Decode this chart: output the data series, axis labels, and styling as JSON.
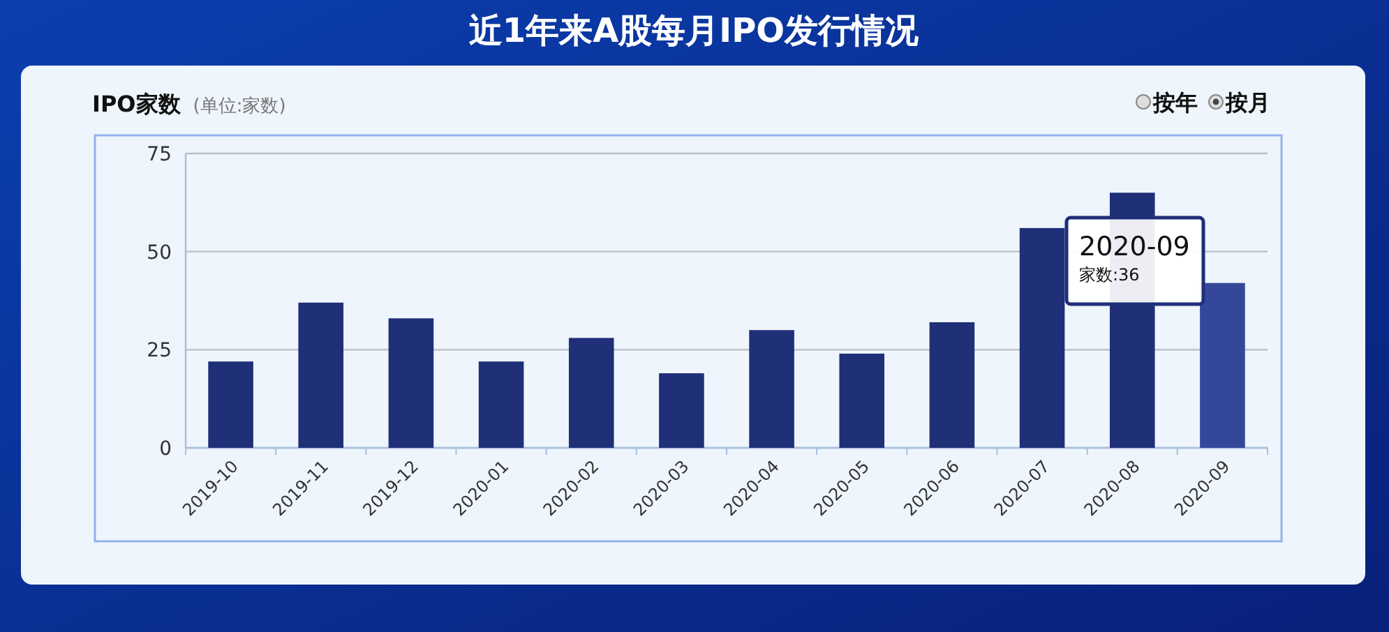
{
  "chart_data": {
    "type": "bar",
    "title": "近1年来A股每月IPO发行情况",
    "ylabel": "IPO家数",
    "subtitle": "(单位:家数)",
    "categories": [
      "2019-10",
      "2019-11",
      "2019-12",
      "2020-01",
      "2020-02",
      "2020-03",
      "2020-04",
      "2020-05",
      "2020-06",
      "2020-07",
      "2020-08",
      "2020-09"
    ],
    "values": [
      22,
      37,
      33,
      22,
      28,
      19,
      30,
      24,
      32,
      56,
      65,
      42
    ],
    "colors": [
      "#1f2f78",
      "#1f2f78",
      "#1f2f78",
      "#1f2f78",
      "#1f2f78",
      "#1f2f78",
      "#1f2f78",
      "#1f2f78",
      "#1f2f78",
      "#1f2f78",
      "#1f2f78",
      "#34479a"
    ],
    "ylim": [
      0,
      75
    ],
    "yticks": [
      0,
      25,
      50,
      75
    ],
    "grid": "y",
    "annotations": [
      "按年",
      "按月",
      "2020-09",
      "家数:36"
    ]
  }
}
